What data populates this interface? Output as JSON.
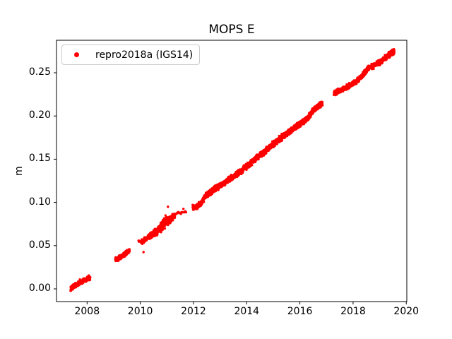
{
  "chart_data": {
    "type": "scatter",
    "title": "MOPS E",
    "xlabel": "",
    "ylabel": "m",
    "grid": false,
    "background": "#ffffff",
    "frame_color": "#000000",
    "xlim": [
      2006.85,
      2020.02
    ],
    "ylim": [
      -0.0147,
      0.2876
    ],
    "xticks": [
      2008,
      2010,
      2012,
      2014,
      2016,
      2018,
      2020
    ],
    "yticks": [
      0.0,
      0.05,
      0.1,
      0.15,
      0.2,
      0.25
    ],
    "ytick_decimals": 2,
    "legend": {
      "label": "repro2018a (IGS14)",
      "marker_color": "#ff0000",
      "position": "upper left",
      "border_color": "#cccccc"
    },
    "series": [
      {
        "name": "repro2018a (IGS14)",
        "color": "#ff0000",
        "marker": "dot",
        "marker_radius_px": 1.7,
        "segments": [
          {
            "n": 260,
            "sd": 0.0013,
            "anchors": [
              [
                2007.38,
                0.0
              ],
              [
                2007.55,
                0.004
              ],
              [
                2007.75,
                0.0075
              ],
              [
                2007.95,
                0.0105
              ],
              [
                2008.12,
                0.0135
              ]
            ]
          },
          {
            "n": 150,
            "sd": 0.0013,
            "anchors": [
              [
                2009.06,
                0.0335
              ],
              [
                2009.25,
                0.0365
              ],
              [
                2009.42,
                0.0405
              ],
              [
                2009.6,
                0.044
              ]
            ]
          },
          {
            "n": 3,
            "sd": 0.0008,
            "anchors": [
              [
                2009.93,
                0.0552
              ],
              [
                2009.97,
                0.0558
              ]
            ]
          },
          {
            "n": 100,
            "sd": 0.0012,
            "anchors": [
              [
                2010.03,
                0.054
              ],
              [
                2010.32,
                0.0605
              ]
            ]
          },
          {
            "n": 340,
            "sd": 0.0019,
            "anchors": [
              [
                2010.32,
                0.0605
              ],
              [
                2010.55,
                0.0645
              ],
              [
                2010.8,
                0.0725
              ],
              [
                2010.95,
                0.0775
              ],
              [
                2011.1,
                0.0795
              ],
              [
                2011.3,
                0.0855
              ]
            ],
            "spread": [
              [
                2010.75,
                2011.0,
                0.0032
              ]
            ]
          },
          {
            "n": 14,
            "sd": 0.0015,
            "anchors": [
              [
                2011.3,
                0.0855
              ],
              [
                2011.5,
                0.089
              ],
              [
                2011.72,
                0.0905
              ]
            ]
          },
          {
            "n": 160,
            "sd": 0.0014,
            "anchors": [
              [
                2011.97,
                0.0935
              ],
              [
                2012.12,
                0.0952
              ],
              [
                2012.27,
                0.0985
              ],
              [
                2012.36,
                0.1025
              ],
              [
                2012.45,
                0.1075
              ]
            ]
          },
          {
            "n": 1600,
            "sd": 0.0015,
            "anchors": [
              [
                2012.45,
                0.1075
              ],
              [
                2013.0,
                0.1195
              ],
              [
                2013.5,
                0.13
              ],
              [
                2014.0,
                0.1415
              ],
              [
                2014.5,
                0.1545
              ],
              [
                2015.0,
                0.1675
              ],
              [
                2015.35,
                0.1762
              ],
              [
                2015.7,
                0.184
              ],
              [
                2016.0,
                0.1905
              ],
              [
                2016.3,
                0.1975
              ],
              [
                2016.5,
                0.2065
              ],
              [
                2016.7,
                0.2115
              ],
              [
                2016.85,
                0.2155
              ]
            ]
          },
          {
            "n": 830,
            "sd": 0.0014,
            "anchors": [
              [
                2017.28,
                0.2265
              ],
              [
                2017.6,
                0.2305
              ],
              [
                2017.9,
                0.236
              ],
              [
                2018.1,
                0.2395
              ],
              [
                2018.35,
                0.2465
              ],
              [
                2018.55,
                0.255
              ],
              [
                2018.75,
                0.258
              ],
              [
                2019.0,
                0.262
              ],
              [
                2019.2,
                0.267
              ],
              [
                2019.35,
                0.271
              ],
              [
                2019.55,
                0.274
              ]
            ]
          },
          {
            "n": 70,
            "sd": 0.0016,
            "anchors": [
              [
                2019.33,
                0.2705
              ],
              [
                2019.55,
                0.2745
              ]
            ]
          }
        ],
        "outliers": [
          [
            2010.12,
            0.0425
          ],
          [
            2011.04,
            0.095
          ]
        ]
      }
    ]
  }
}
